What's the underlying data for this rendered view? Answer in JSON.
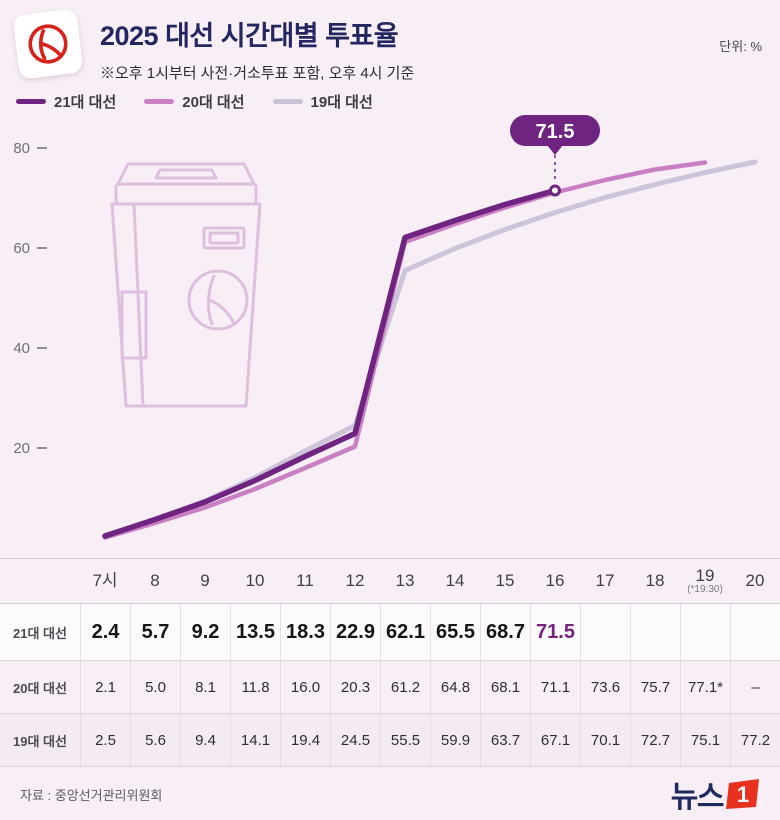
{
  "unit_label": "단위: %",
  "header": {
    "title": "2025 대선 시간대별 투표율",
    "subtitle": "※오후 1시부터 사전·거소투표 포함, 오후 4시 기준"
  },
  "legend": [
    {
      "label": "21대 대선",
      "color": "#6e2480"
    },
    {
      "label": "20대 대선",
      "color": "#c97fc2"
    },
    {
      "label": "19대 대선",
      "color": "#ccc4d8"
    }
  ],
  "callout": {
    "value": "71.5"
  },
  "colors": {
    "line_21": "#6e2480",
    "line_20": "#c97fc2",
    "line_19": "#ccc4d8",
    "callout_bg": "#6e2480",
    "highlight": "#77227f",
    "title_navy": "#23265f",
    "accent_red": "#e8321f"
  },
  "chart_data": {
    "type": "line",
    "x": [
      "7시",
      "8",
      "9",
      "10",
      "11",
      "12",
      "13",
      "14",
      "15",
      "16",
      "17",
      "18",
      "19",
      "20"
    ],
    "yticks": [
      20,
      40,
      60,
      80
    ],
    "ylim": [
      0,
      85
    ],
    "grid": false,
    "legend_position": "top-left",
    "series": [
      {
        "name": "21대 대선",
        "color": "#6e2480",
        "values": [
          2.4,
          5.7,
          9.2,
          13.5,
          18.3,
          22.9,
          62.1,
          65.5,
          68.7,
          71.5
        ]
      },
      {
        "name": "20대 대선",
        "color": "#c97fc2",
        "values": [
          2.1,
          5.0,
          8.1,
          11.8,
          16.0,
          20.3,
          61.2,
          64.8,
          68.1,
          71.1,
          73.6,
          75.7,
          77.1
        ]
      },
      {
        "name": "19대 대선",
        "color": "#ccc4d8",
        "values": [
          2.5,
          5.6,
          9.4,
          14.1,
          19.4,
          24.5,
          55.5,
          59.9,
          63.7,
          67.1,
          70.1,
          72.7,
          75.1,
          77.2
        ]
      }
    ]
  },
  "table": {
    "note": "(*19:30)",
    "note_col": 12,
    "rows": [
      {
        "label": "21대 대선",
        "highlight_index": 9,
        "values": [
          "2.4",
          "5.7",
          "9.2",
          "13.5",
          "18.3",
          "22.9",
          "62.1",
          "65.5",
          "68.7",
          "71.5",
          "",
          "",
          "",
          ""
        ]
      },
      {
        "label": "20대 대선",
        "values": [
          "2.1",
          "5.0",
          "8.1",
          "11.8",
          "16.0",
          "20.3",
          "61.2",
          "64.8",
          "68.1",
          "71.1",
          "73.6",
          "75.7",
          "77.1*",
          "–"
        ]
      },
      {
        "label": "19대 대선",
        "values": [
          "2.5",
          "5.6",
          "9.4",
          "14.1",
          "19.4",
          "24.5",
          "55.5",
          "59.9",
          "63.7",
          "67.1",
          "70.1",
          "72.7",
          "75.1",
          "77.2"
        ]
      }
    ]
  },
  "footer": {
    "source": "자료 : 중앙선거관리위원회",
    "logo_text": "뉴스",
    "logo_mark": "1"
  }
}
